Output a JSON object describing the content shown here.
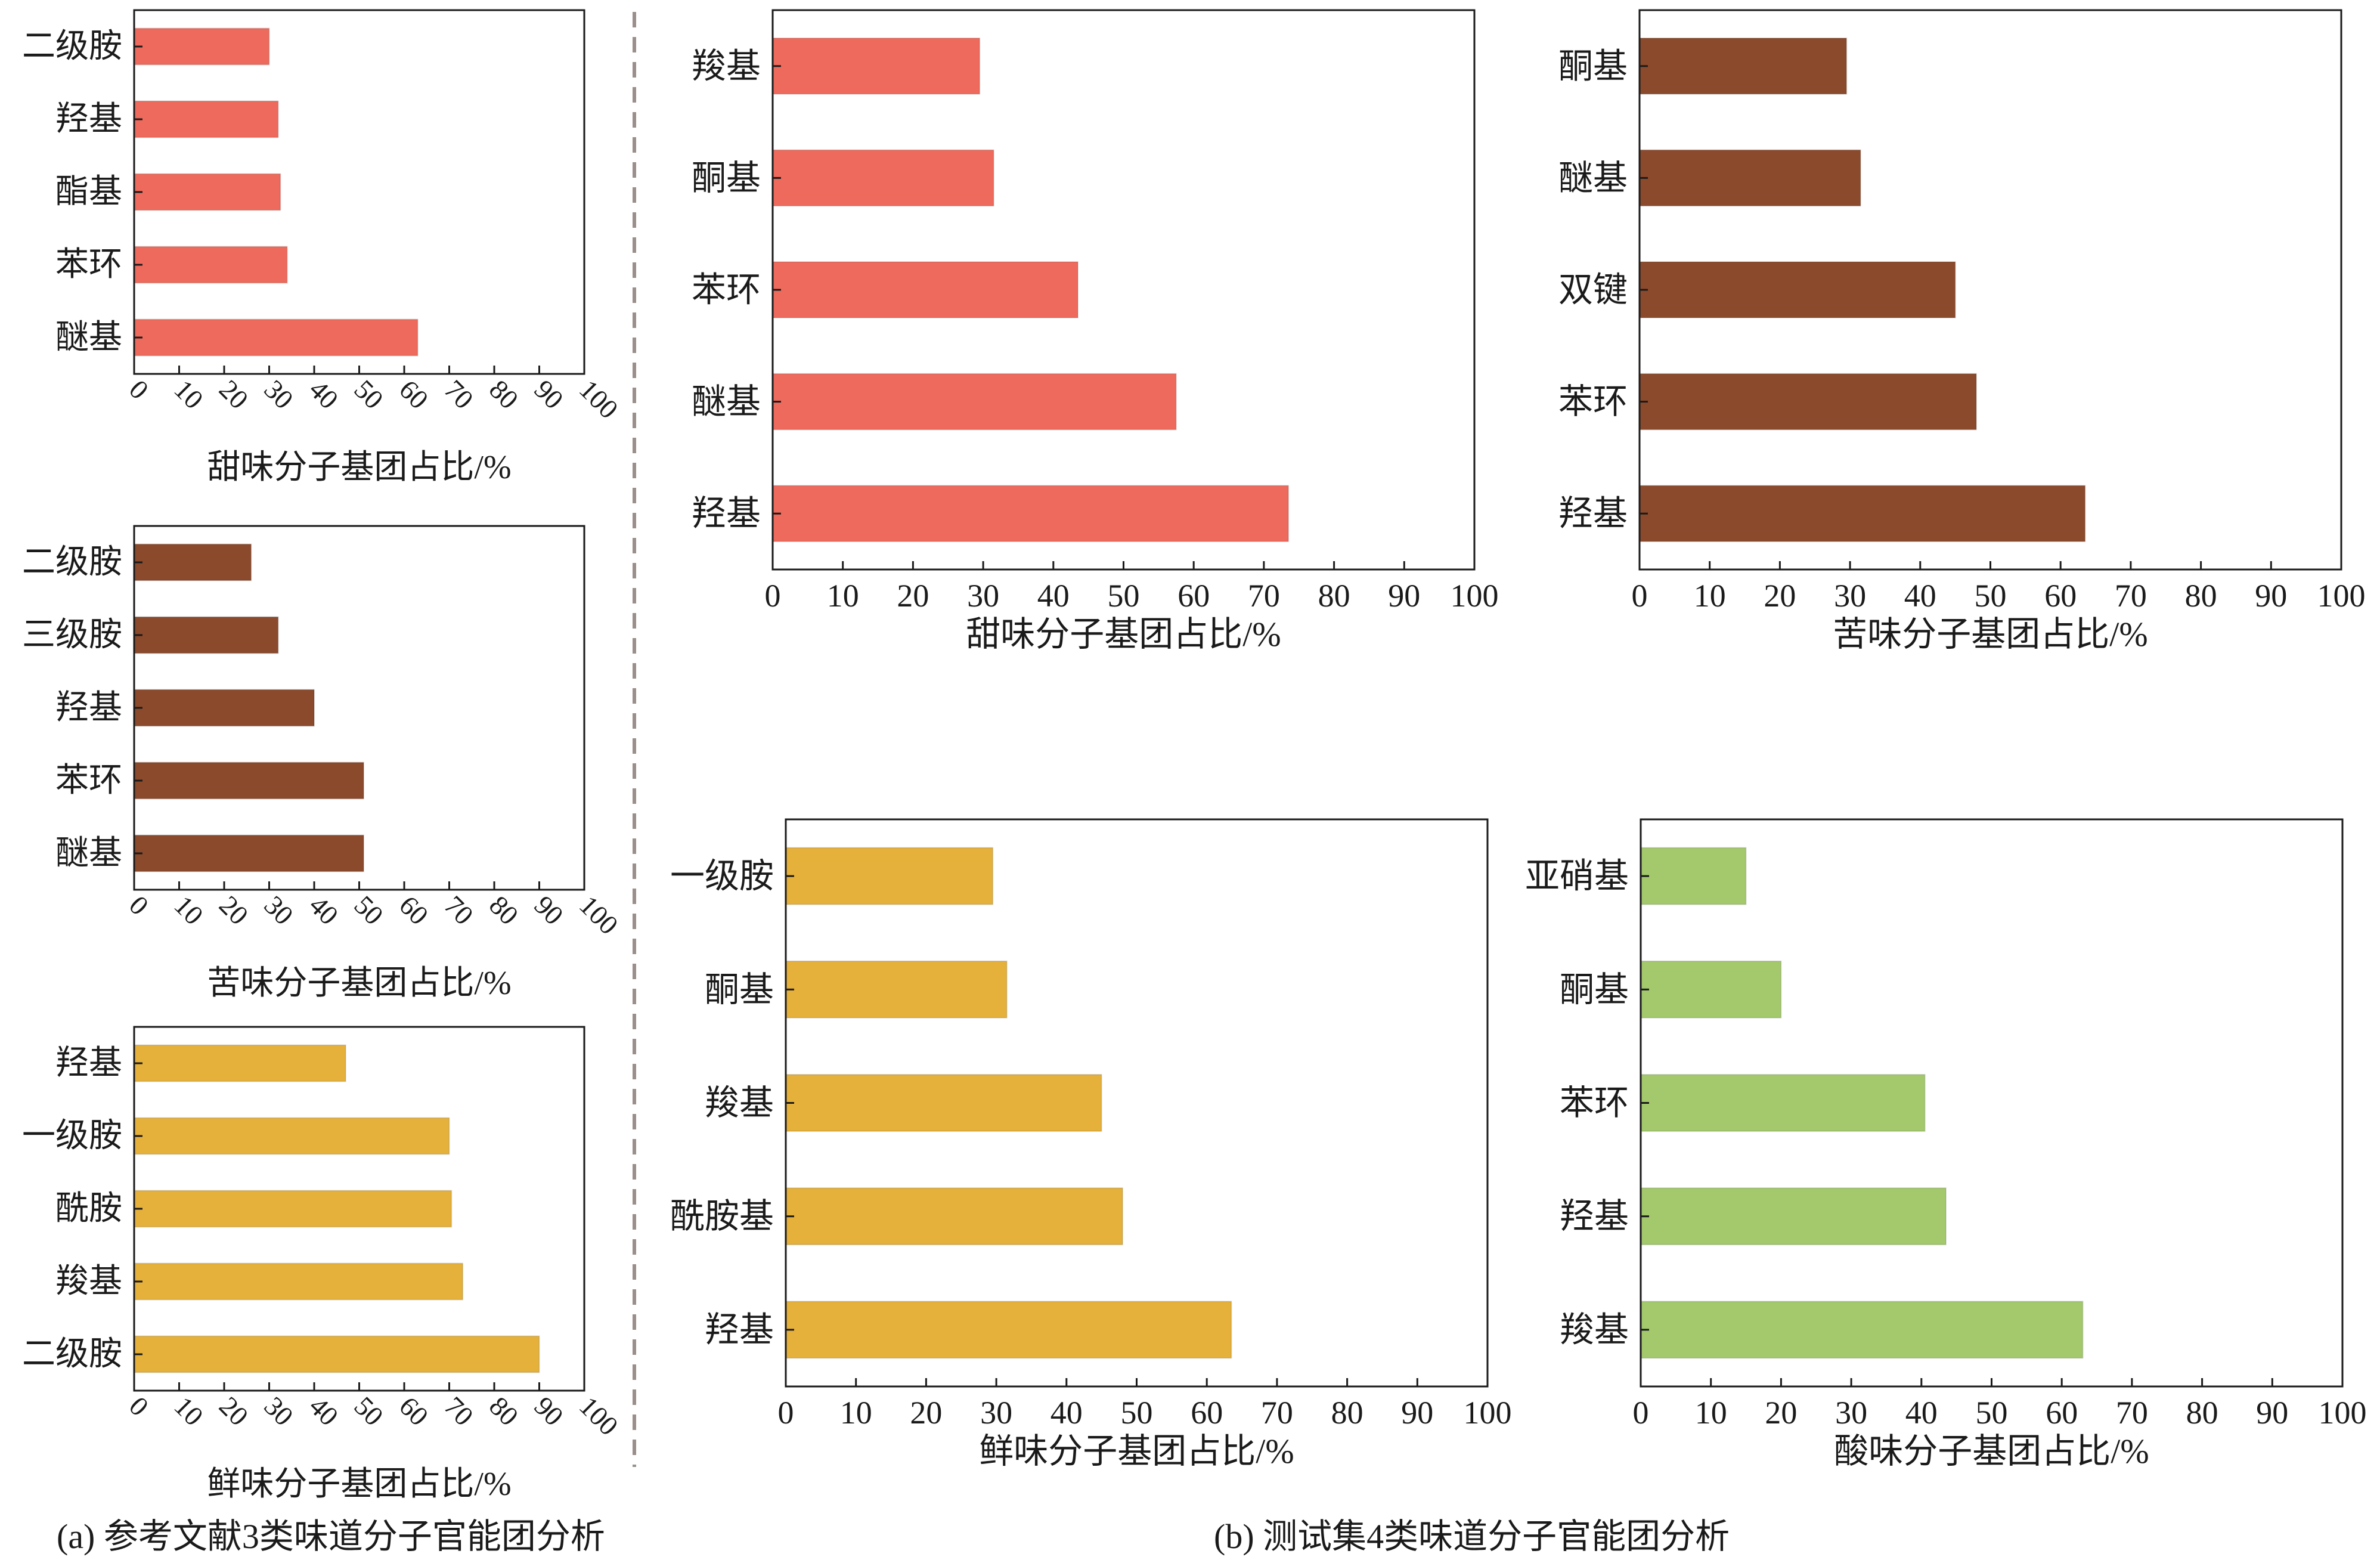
{
  "captions": {
    "a": "(a) 参考文献3类味道分子官能团分析",
    "b": "(b) 测试集4类味道分子官能团分析"
  },
  "colors": {
    "sweet": "#ee6a5c",
    "bitter": "#8b4a2c",
    "umami": "#e5b13b",
    "sour": "#a3c96c",
    "axis": "#1a1a1a",
    "divider": "#9a8f8a"
  },
  "chart_data": [
    {
      "id": "a-sweet",
      "type": "bar",
      "orientation": "horizontal",
      "categories": [
        "二级胺",
        "羟基",
        "酯基",
        "苯环",
        "醚基"
      ],
      "values": [
        30,
        32,
        32.5,
        34,
        63
      ],
      "xlabel": "甜味分子基团占比/%",
      "xlim": [
        0,
        100
      ],
      "xticks": [
        "0",
        "10",
        "20",
        "30",
        "40",
        "50",
        "60",
        "70",
        "80",
        "90",
        "100"
      ],
      "color": "sweet",
      "grid": false
    },
    {
      "id": "a-bitter",
      "type": "bar",
      "orientation": "horizontal",
      "categories": [
        "二级胺",
        "三级胺",
        "羟基",
        "苯环",
        "醚基"
      ],
      "values": [
        26,
        32,
        40,
        51,
        51
      ],
      "xlabel": "苦味分子基团占比/%",
      "xlim": [
        0,
        100
      ],
      "xticks": [
        "0",
        "10",
        "20",
        "30",
        "40",
        "50",
        "60",
        "70",
        "80",
        "90",
        "100"
      ],
      "color": "bitter",
      "grid": false
    },
    {
      "id": "a-umami",
      "type": "bar",
      "orientation": "horizontal",
      "categories": [
        "羟基",
        "一级胺",
        "酰胺",
        "羧基",
        "二级胺"
      ],
      "values": [
        47,
        70,
        70.5,
        73,
        90
      ],
      "xlabel": "鲜味分子基团占比/%",
      "xlim": [
        0,
        100
      ],
      "xticks": [
        "0",
        "10",
        "20",
        "30",
        "40",
        "50",
        "60",
        "70",
        "80",
        "90",
        "100"
      ],
      "color": "umami",
      "grid": false
    },
    {
      "id": "b-sweet",
      "type": "bar",
      "orientation": "horizontal",
      "categories": [
        "羧基",
        "酮基",
        "苯环",
        "醚基",
        "羟基"
      ],
      "values": [
        29.5,
        31.5,
        43.5,
        57.5,
        73.5
      ],
      "xlabel": "甜味分子基团占比/%",
      "xlim": [
        0,
        100
      ],
      "xticks": [
        "0",
        "10",
        "20",
        "30",
        "40",
        "50",
        "60",
        "70",
        "80",
        "90",
        "100"
      ],
      "color": "sweet",
      "grid": false
    },
    {
      "id": "b-bitter",
      "type": "bar",
      "orientation": "horizontal",
      "categories": [
        "酮基",
        "醚基",
        "双键",
        "苯环",
        "羟基"
      ],
      "values": [
        29.5,
        31.5,
        45,
        48,
        63.5
      ],
      "xlabel": "苦味分子基团占比/%",
      "xlim": [
        0,
        100
      ],
      "xticks": [
        "0",
        "10",
        "20",
        "30",
        "40",
        "50",
        "60",
        "70",
        "80",
        "90",
        "100"
      ],
      "color": "bitter",
      "grid": false
    },
    {
      "id": "b-umami",
      "type": "bar",
      "orientation": "horizontal",
      "categories": [
        "一级胺",
        "酮基",
        "羧基",
        "酰胺基",
        "羟基"
      ],
      "values": [
        29.5,
        31.5,
        45,
        48,
        63.5
      ],
      "xlabel": "鲜味分子基团占比/%",
      "xlim": [
        0,
        100
      ],
      "xticks": [
        "0",
        "10",
        "20",
        "30",
        "40",
        "50",
        "60",
        "70",
        "80",
        "90",
        "100"
      ],
      "color": "umami",
      "grid": false
    },
    {
      "id": "b-sour",
      "type": "bar",
      "orientation": "horizontal",
      "categories": [
        "亚硝基",
        "酮基",
        "苯环",
        "羟基",
        "羧基"
      ],
      "values": [
        15,
        20,
        40.5,
        43.5,
        63
      ],
      "xlabel": "酸味分子基团占比/%",
      "xlim": [
        0,
        100
      ],
      "xticks": [
        "0",
        "10",
        "20",
        "30",
        "40",
        "50",
        "60",
        "70",
        "80",
        "90",
        "100"
      ],
      "color": "sour",
      "grid": false
    }
  ]
}
